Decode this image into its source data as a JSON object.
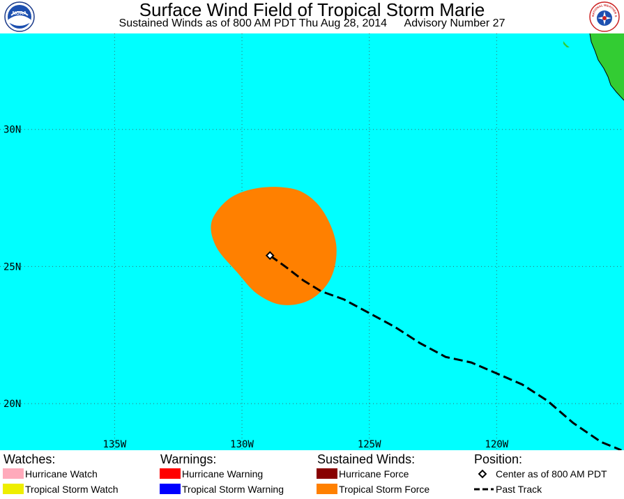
{
  "header": {
    "title": "Surface Wind Field of Tropical Storm Marie",
    "subtitle_time": "Sustained Winds as of 800 AM PDT Thu Aug 28, 2014",
    "subtitle_advisory": "Advisory Number 27",
    "left_logo": {
      "icon": "noaa-logo-icon",
      "text": "NOAA"
    },
    "right_logo": {
      "icon": "nws-logo-icon",
      "text": "NATIONAL WEATHER SERVICE"
    }
  },
  "map": {
    "ocean_color": "#00ffff",
    "land_color": "#33cc33",
    "grid_color": "#3a6a6a",
    "lon_range": [
      -139.5,
      -115
    ],
    "lat_range": [
      18.3,
      33.5
    ],
    "lon_labels": [
      {
        "lon": -135,
        "text": "135W"
      },
      {
        "lon": -130,
        "text": "130W"
      },
      {
        "lon": -125,
        "text": "125W"
      },
      {
        "lon": -120,
        "text": "120W"
      }
    ],
    "lat_labels": [
      {
        "lat": 30,
        "text": "30N"
      },
      {
        "lat": 25,
        "text": "25N"
      },
      {
        "lat": 20,
        "text": "20N"
      }
    ],
    "extra_grid_lat": [
      33.5
    ],
    "center": {
      "lon": -128.9,
      "lat": 25.4
    },
    "past_track": [
      [
        -128.9,
        25.4
      ],
      [
        -128.3,
        25.0
      ],
      [
        -127.6,
        24.5
      ],
      [
        -126.9,
        24.1
      ],
      [
        -126.0,
        23.8
      ],
      [
        -125.0,
        23.3
      ],
      [
        -124.0,
        22.8
      ],
      [
        -123.0,
        22.2
      ],
      [
        -122.0,
        21.7
      ],
      [
        -121.0,
        21.5
      ],
      [
        -120.0,
        21.1
      ],
      [
        -119.0,
        20.7
      ],
      [
        -118.0,
        20.1
      ],
      [
        -117.0,
        19.3
      ],
      [
        -115.9,
        18.6
      ],
      [
        -115.1,
        18.3
      ]
    ],
    "ts_wind_field": [
      [
        -128.6,
        27.9
      ],
      [
        -127.6,
        27.7
      ],
      [
        -126.8,
        27.0
      ],
      [
        -126.3,
        25.8
      ],
      [
        -126.5,
        24.6
      ],
      [
        -127.3,
        23.8
      ],
      [
        -128.4,
        23.6
      ],
      [
        -129.4,
        24.0
      ],
      [
        -130.2,
        24.8
      ],
      [
        -131.0,
        25.7
      ],
      [
        -131.2,
        26.6
      ],
      [
        -130.6,
        27.4
      ],
      [
        -129.7,
        27.8
      ]
    ]
  },
  "legend": {
    "watches": {
      "heading": "Watches:",
      "items": [
        {
          "label": "Hurricane Watch",
          "color": "#ffaabb"
        },
        {
          "label": "Tropical Storm Watch",
          "color": "#eeee00"
        }
      ]
    },
    "warnings": {
      "heading": "Warnings:",
      "items": [
        {
          "label": "Hurricane Warning",
          "color": "#ff0000"
        },
        {
          "label": "Tropical Storm Warning",
          "color": "#0000ff"
        }
      ]
    },
    "winds": {
      "heading": "Sustained Winds:",
      "items": [
        {
          "label": "Hurricane Force",
          "color": "#880000"
        },
        {
          "label": "Tropical Storm Force",
          "color": "#ff8000"
        }
      ]
    },
    "position": {
      "heading": "Position:",
      "center_label": "Center as of 800 AM PDT",
      "track_label": "Past Track"
    }
  }
}
